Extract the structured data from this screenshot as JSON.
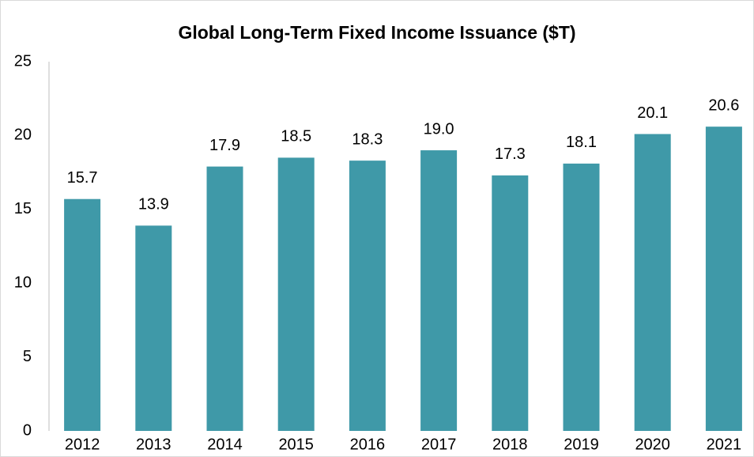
{
  "chart_data": {
    "type": "bar",
    "title": "Global Long-Term Fixed Income Issuance ($T)",
    "categories": [
      "2012",
      "2013",
      "2014",
      "2015",
      "2016",
      "2017",
      "2018",
      "2019",
      "2020",
      "2021"
    ],
    "values": [
      15.7,
      13.9,
      17.9,
      18.5,
      18.3,
      19.0,
      17.3,
      18.1,
      20.1,
      20.6
    ],
    "value_labels": [
      "15.7",
      "13.9",
      "17.9",
      "18.5",
      "18.3",
      "19.0",
      "17.3",
      "18.1",
      "20.1",
      "20.6"
    ],
    "color": "#3f99a8",
    "ylim": [
      0,
      25
    ],
    "yticks": [
      0,
      5,
      10,
      15,
      20,
      25
    ],
    "grid": false
  }
}
